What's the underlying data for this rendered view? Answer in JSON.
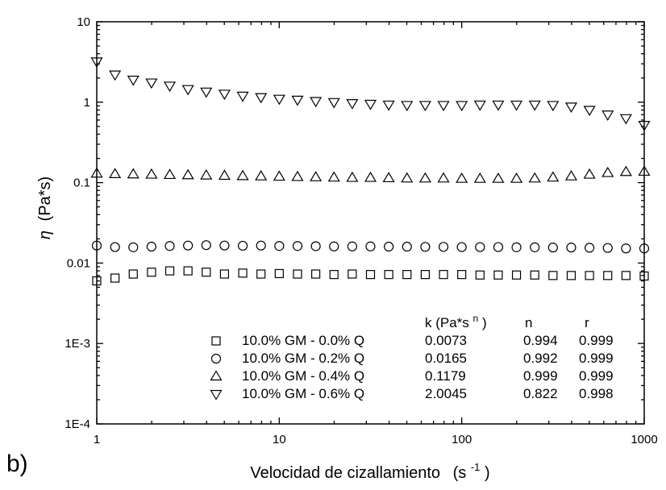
{
  "panel_label": "b)",
  "chart_data": {
    "type": "scatter",
    "title": "",
    "xlabel": "Velocidad de cizallamiento",
    "xlabel_unit": "(s",
    "xlabel_unit_sup": "-1",
    "xlabel_unit_close": ")",
    "ylabel_symbol": "η",
    "ylabel_unit": "(Pa*s)",
    "x_scale": "log",
    "y_scale": "log",
    "xlim": [
      1,
      1000
    ],
    "ylim": [
      0.0001,
      10
    ],
    "x_ticks": [
      1,
      10,
      100,
      1000
    ],
    "x_tick_labels": [
      "1",
      "10",
      "100",
      "1000"
    ],
    "y_ticks": [
      0.0001,
      0.001,
      0.01,
      0.1,
      1,
      10
    ],
    "y_tick_labels": [
      "1E-4",
      "1E-3",
      "0.01",
      "0.1",
      "1",
      "10"
    ],
    "grid": false,
    "legend_position": "bottom-right",
    "table_headers": {
      "k": "k (Pa*s",
      "k_sup": "n",
      "k_close": ")",
      "n": "n",
      "r": "r"
    },
    "series": [
      {
        "name": "10.0% GM - 0.0% Q",
        "marker": "square",
        "k": "0.0073",
        "n": "0.994",
        "r": "0.999",
        "x": [
          1,
          1.259,
          1.585,
          1.995,
          2.512,
          3.162,
          3.981,
          5.012,
          6.31,
          7.943,
          10,
          12.59,
          15.85,
          19.95,
          25.12,
          31.62,
          39.81,
          50.12,
          63.1,
          79.43,
          100,
          125.9,
          158.5,
          199.5,
          251.2,
          316.2,
          398.1,
          501.2,
          631,
          794.3,
          1000
        ],
        "y": [
          0.006,
          0.0065,
          0.0073,
          0.0077,
          0.008,
          0.008,
          0.0077,
          0.0073,
          0.0075,
          0.0073,
          0.0074,
          0.0073,
          0.0073,
          0.0072,
          0.0073,
          0.0072,
          0.0072,
          0.0072,
          0.0072,
          0.0072,
          0.0072,
          0.0071,
          0.0071,
          0.0071,
          0.0071,
          0.007,
          0.007,
          0.007,
          0.007,
          0.007,
          0.0069
        ]
      },
      {
        "name": "10.0% GM - 0.2% Q",
        "marker": "circle",
        "k": "0.0165",
        "n": "0.992",
        "r": "0.999",
        "x": [
          1,
          1.259,
          1.585,
          1.995,
          2.512,
          3.162,
          3.981,
          5.012,
          6.31,
          7.943,
          10,
          12.59,
          15.85,
          19.95,
          25.12,
          31.62,
          39.81,
          50.12,
          63.1,
          79.43,
          100,
          125.9,
          158.5,
          199.5,
          251.2,
          316.2,
          398.1,
          501.2,
          631,
          794.3,
          1000
        ],
        "y": [
          0.0165,
          0.0158,
          0.0157,
          0.016,
          0.0163,
          0.0165,
          0.0167,
          0.0165,
          0.0164,
          0.0165,
          0.0163,
          0.0163,
          0.0162,
          0.0161,
          0.0161,
          0.0161,
          0.016,
          0.016,
          0.0159,
          0.0159,
          0.0158,
          0.0158,
          0.0158,
          0.0157,
          0.0157,
          0.0156,
          0.0156,
          0.0155,
          0.0154,
          0.0152,
          0.0152
        ]
      },
      {
        "name": "10.0% GM - 0.4% Q",
        "marker": "triangle-up",
        "k": "0.1179",
        "n": "0.999",
        "r": "0.999",
        "x": [
          1,
          1.259,
          1.585,
          1.995,
          2.512,
          3.162,
          3.981,
          5.012,
          6.31,
          7.943,
          10,
          12.59,
          15.85,
          19.95,
          25.12,
          31.62,
          39.81,
          50.12,
          63.1,
          79.43,
          100,
          125.9,
          158.5,
          199.5,
          251.2,
          316.2,
          398.1,
          501.2,
          631,
          794.3,
          1000
        ],
        "y": [
          0.13,
          0.128,
          0.127,
          0.126,
          0.125,
          0.124,
          0.123,
          0.122,
          0.121,
          0.12,
          0.119,
          0.118,
          0.117,
          0.116,
          0.115,
          0.115,
          0.114,
          0.113,
          0.113,
          0.113,
          0.112,
          0.112,
          0.112,
          0.112,
          0.113,
          0.116,
          0.12,
          0.126,
          0.132,
          0.136,
          0.137
        ]
      },
      {
        "name": "10.0% GM - 0.6% Q",
        "marker": "triangle-down",
        "k": "2.0045",
        "n": "0.822",
        "r": "0.998",
        "x": [
          1,
          1.259,
          1.585,
          1.995,
          2.512,
          3.162,
          3.981,
          5.012,
          6.31,
          7.943,
          10,
          12.59,
          15.85,
          19.95,
          25.12,
          31.62,
          39.81,
          50.12,
          63.1,
          79.43,
          100,
          125.9,
          158.5,
          199.5,
          251.2,
          316.2,
          398.1,
          501.2,
          631,
          794.3,
          1000
        ],
        "y": [
          3.2,
          2.2,
          1.9,
          1.75,
          1.6,
          1.45,
          1.35,
          1.27,
          1.2,
          1.15,
          1.1,
          1.07,
          1.03,
          1.0,
          0.97,
          0.95,
          0.93,
          0.92,
          0.92,
          0.92,
          0.92,
          0.93,
          0.93,
          0.93,
          0.93,
          0.92,
          0.88,
          0.8,
          0.7,
          0.63,
          0.52
        ]
      }
    ]
  }
}
